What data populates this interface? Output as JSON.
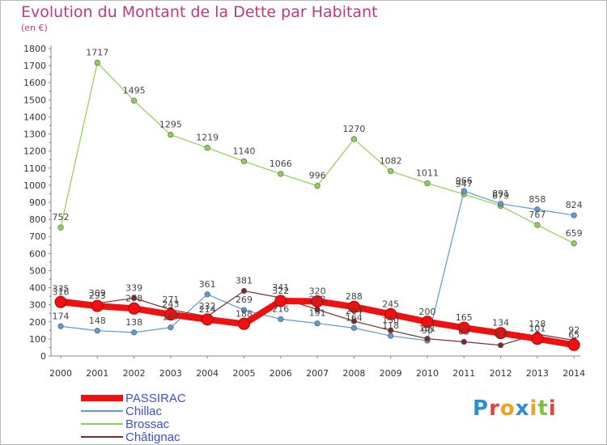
{
  "title": "Evolution du Montant de la Dette par Habitant",
  "unit_label": "(en €)",
  "logo": {
    "letters": [
      "P",
      "r",
      "o",
      "x",
      "i",
      "t",
      "i"
    ],
    "colors": [
      "#2a8fd6",
      "#e8413c",
      "#f2a11f",
      "#2a8fd6",
      "#f2a11f",
      "#7fc242",
      "#e8413c"
    ]
  },
  "chart_data": {
    "type": "line",
    "title": "Evolution du Montant de la Dette par Habitant",
    "ylabel": "(en €)",
    "xlabel": "",
    "x": [
      "2000",
      "2001",
      "2002",
      "2003",
      "2004",
      "2005",
      "2006",
      "2007",
      "2008",
      "2009",
      "2010",
      "2011",
      "2012",
      "2013",
      "2014"
    ],
    "yticks": [
      "0",
      "100",
      "200",
      "300",
      "400",
      "500",
      "600",
      "700",
      "800",
      "900",
      "1000",
      "1100",
      "1200",
      "1300",
      "1400",
      "1500",
      "1600",
      "1700",
      "1800"
    ],
    "ylim": [
      0,
      1800
    ],
    "grid": false,
    "legend_position": "bottom-left",
    "series": [
      {
        "name": "Brossac",
        "color": "#8ed04f",
        "width": 1.2,
        "values": [
          752,
          1717,
          1495,
          1295,
          1219,
          1140,
          1066,
          996,
          1270,
          1082,
          1011,
          947,
          879,
          767,
          659
        ],
        "labels": [
          "752",
          "1717",
          "1495",
          "1295",
          "1219",
          "1140",
          "1066",
          "996",
          "1270",
          "1082",
          "1011",
          "947",
          "879",
          "767",
          "659"
        ]
      },
      {
        "name": "Chillac",
        "color": "#5b9bd5",
        "width": 1.2,
        "values": [
          174,
          148,
          138,
          167,
          361,
          269,
          216,
          191,
          164,
          118,
          90,
          966,
          891,
          858,
          824
        ],
        "labels": [
          "174",
          "148",
          "138",
          "167",
          "361",
          "269",
          "216",
          "191",
          "164",
          "118",
          "90",
          "966",
          "891",
          "858",
          "824"
        ]
      },
      {
        "name": "Châtignac",
        "color": "#7b2a2a",
        "width": 1.2,
        "values": [
          335,
          309,
          339,
          271,
          232,
          381,
          341,
          272,
          204,
          150,
          101,
          83,
          63,
          128,
          92
        ],
        "labels": [
          "335",
          "309",
          "339",
          "271",
          "232",
          "381",
          "341",
          "272",
          "204",
          "150",
          "101",
          "83",
          "63",
          "128",
          "92"
        ]
      },
      {
        "name": "PASSIRAC",
        "color": "#ee1111",
        "width": 8,
        "values": [
          316,
          293,
          278,
          243,
          214,
          188,
          322,
          320,
          288,
          245,
          200,
          165,
          134,
          101,
          65
        ],
        "labels": [
          "316",
          "293",
          "278",
          "243",
          "214",
          "188",
          "322",
          "320",
          "288",
          "245",
          "200",
          "165",
          "134",
          "101",
          "65"
        ]
      }
    ]
  },
  "legend": [
    {
      "name": "PASSIRAC",
      "color": "#ee1111",
      "thick": 8
    },
    {
      "name": "Chillac",
      "color": "#5b9bd5",
      "thick": 2
    },
    {
      "name": "Brossac",
      "color": "#8ed04f",
      "thick": 2
    },
    {
      "name": "Châtignac",
      "color": "#7b2a2a",
      "thick": 2
    }
  ]
}
